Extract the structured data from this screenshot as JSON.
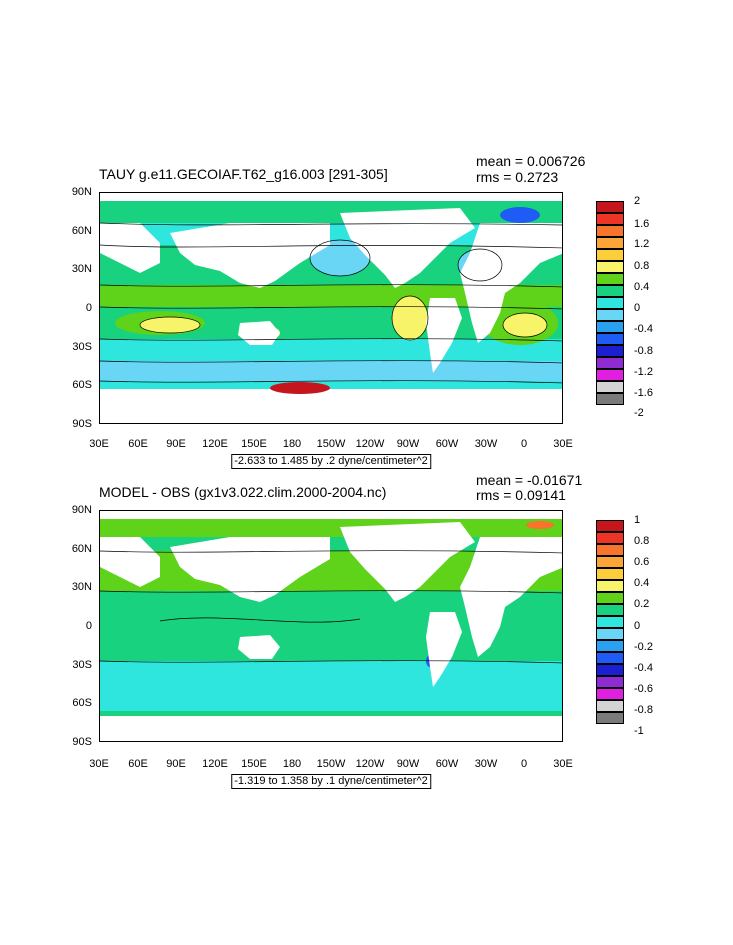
{
  "panels": [
    {
      "title": "TAUY g.e11.GECOIAF.T62_g16.003 [291-305]",
      "mean_text": "mean = 0.006726",
      "rms_text": "rms = 0.2723",
      "range_text": "-2.633 to 1.485 by .2 dyne/centimeter^2",
      "colorbar_labels": [
        "2",
        "1.6",
        "1.2",
        "0.8",
        "0.4",
        "0",
        "-0.4",
        "-0.8",
        "-1.2",
        "-1.6",
        "-2"
      ]
    },
    {
      "title": "MODEL - OBS (gx1v3.022.clim.2000-2004.nc)",
      "mean_text": "mean = -0.01671",
      "rms_text": "rms = 0.09141",
      "range_text": "-1.319 to 1.358 by .1 dyne/centimeter^2",
      "colorbar_labels": [
        "1",
        "0.8",
        "0.6",
        "0.4",
        "0.2",
        "0",
        "-0.2",
        "-0.4",
        "-0.6",
        "-0.8",
        "-1"
      ]
    }
  ],
  "lat_labels": [
    "90N",
    "60N",
    "30N",
    "0",
    "30S",
    "60S",
    "90S"
  ],
  "lon_labels": [
    "30E",
    "60E",
    "90E",
    "120E",
    "150E",
    "180",
    "150W",
    "120W",
    "90W",
    "60W",
    "30W",
    "0",
    "30E"
  ],
  "colorbar_colors": [
    "#c4161c",
    "#ee3424",
    "#f8732b",
    "#fba437",
    "#fccf3a",
    "#f8f46a",
    "#5fd21a",
    "#18d27f",
    "#2ee6dd",
    "#69d6f6",
    "#29a0f0",
    "#1f5cf5",
    "#1b1fd2",
    "#8e2bd2",
    "#e11fe1",
    "#d4d4d4",
    "#7a7a7a"
  ],
  "colors": {
    "land": "#ffffff",
    "ocean_zero": "#18d27f",
    "ocean_pos": "#5fd21a",
    "ocean_light_neg": "#2ee6dd",
    "ocean_neg": "#69d6f6",
    "strong_pos": "#f8f46a",
    "strong_neg": "#1f5cf5"
  }
}
